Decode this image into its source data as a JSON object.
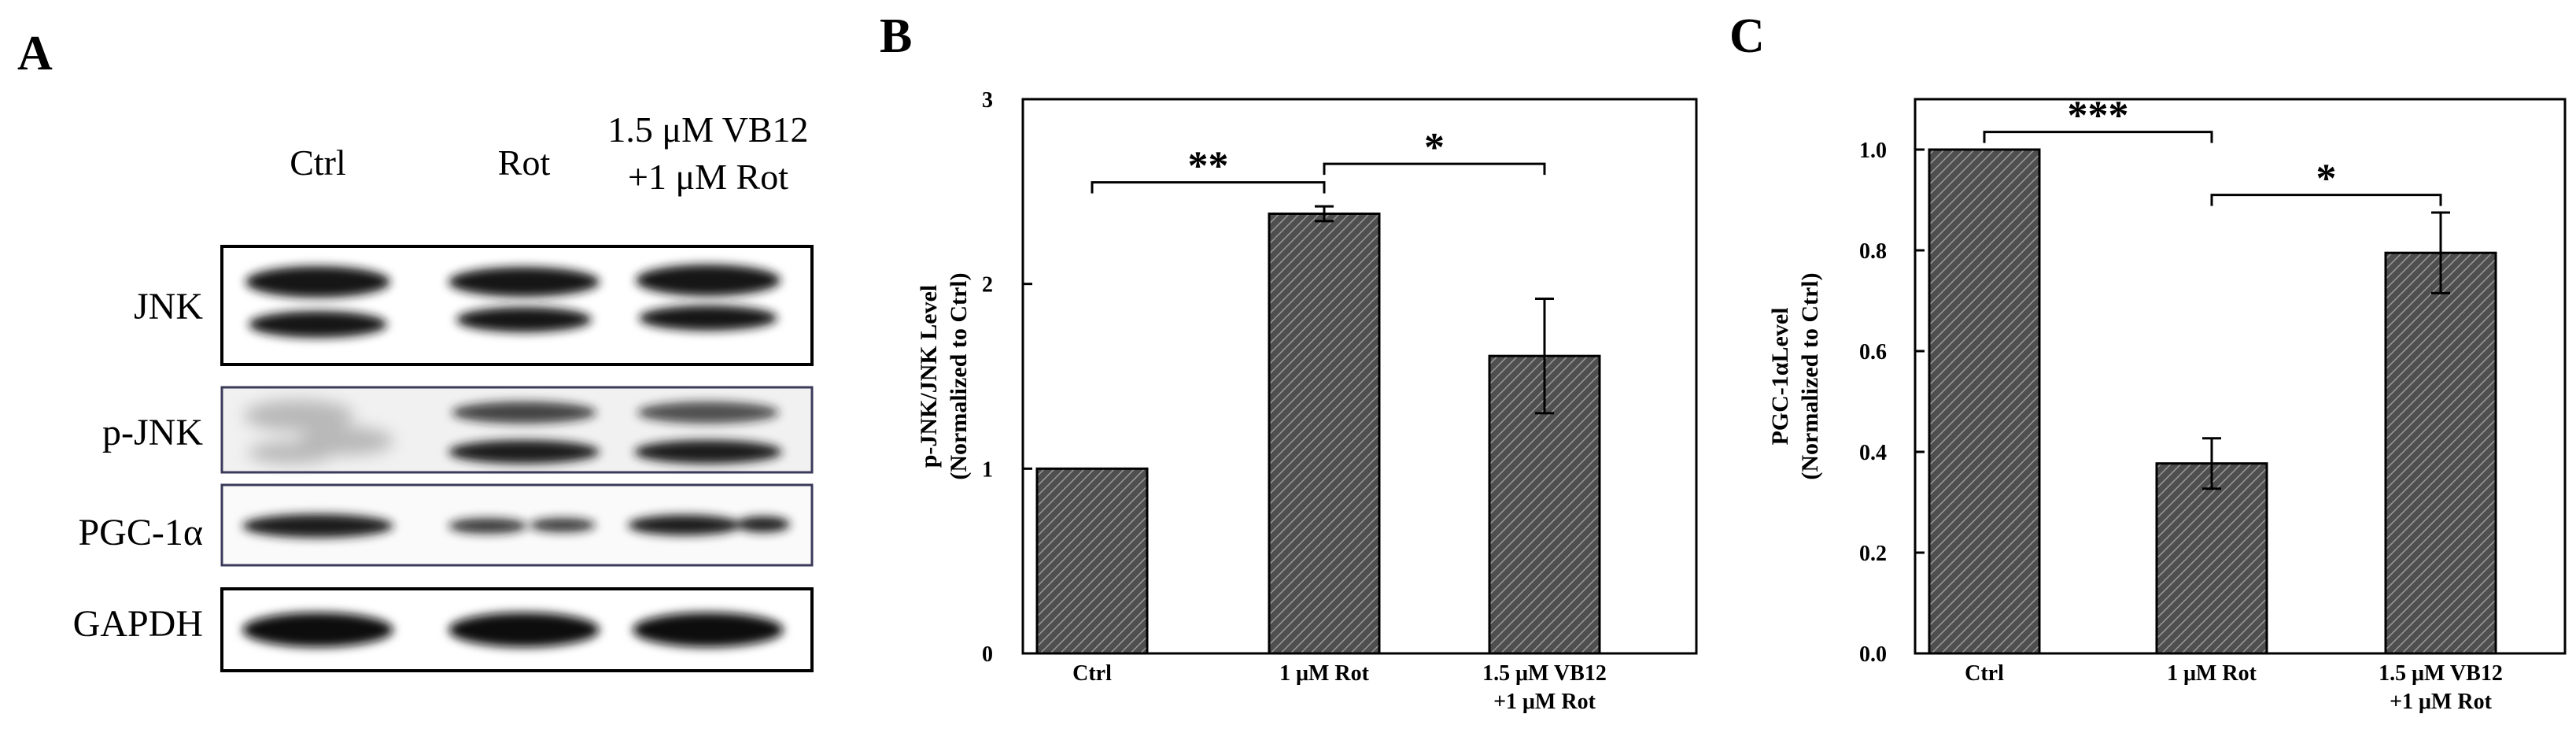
{
  "panels": {
    "a": "A",
    "b": "B",
    "c": "C"
  },
  "blot": {
    "lanes": [
      "Ctrl",
      "Rot",
      "1.5 μM VB12",
      "+1 μM Rot"
    ],
    "rows": [
      "JNK",
      "p-JNK",
      "PGC-1α",
      "GAPDH"
    ]
  },
  "colors": {
    "bar_fill": "#555555",
    "hatch": "#9a9a9a",
    "axis": "#000000",
    "blot_border_dark": "#000000",
    "blot_border_frame": "#3a3a5a"
  },
  "chart_data": [
    {
      "type": "bar",
      "panel": "B",
      "categories": [
        "Ctrl",
        "1 μM Rot",
        "1.5 μM VB12\n+1 μM Rot"
      ],
      "category_lines": [
        [
          "Ctrl"
        ],
        [
          "1 μM Rot"
        ],
        [
          "1.5 μM VB12",
          "+1 μM Rot"
        ]
      ],
      "values": [
        1.0,
        2.38,
        1.61
      ],
      "errors": [
        0,
        0.04,
        0.31
      ],
      "ylabel_lines": [
        "p-JNK/JNK Level",
        "(Normalized to Ctrl)"
      ],
      "ylim": [
        0,
        3
      ],
      "yticks": [
        0,
        1,
        2,
        3
      ],
      "ytick_labels": [
        "0",
        "1",
        "2",
        "3"
      ],
      "significance": [
        {
          "from": 0,
          "to": 1,
          "label": "**",
          "y": 2.55
        },
        {
          "from": 1,
          "to": 2,
          "label": "*",
          "y": 2.65
        }
      ]
    },
    {
      "type": "bar",
      "panel": "C",
      "categories": [
        "Ctrl",
        "1 μM Rot",
        "1.5 μM VB12\n+1 μM Rot"
      ],
      "category_lines": [
        [
          "Ctrl"
        ],
        [
          "1 μM Rot"
        ],
        [
          "1.5 μM VB12",
          "+1 μM Rot"
        ]
      ],
      "values": [
        1.0,
        0.377,
        0.795
      ],
      "errors": [
        0,
        0.05,
        0.08
      ],
      "ylabel_lines": [
        "PGC-1αLevel",
        "(Normalized to Ctrl)"
      ],
      "ylim": [
        0,
        1.1
      ],
      "yticks": [
        0,
        0.2,
        0.4,
        0.6,
        0.8,
        1.0
      ],
      "ytick_labels": [
        "0.0",
        "0.2",
        "0.4",
        "0.6",
        "0.8",
        "1.0"
      ],
      "significance": [
        {
          "from": 0,
          "to": 1,
          "label": "***",
          "y": 1.035
        },
        {
          "from": 1,
          "to": 2,
          "label": "*",
          "y": 0.91
        }
      ]
    }
  ]
}
